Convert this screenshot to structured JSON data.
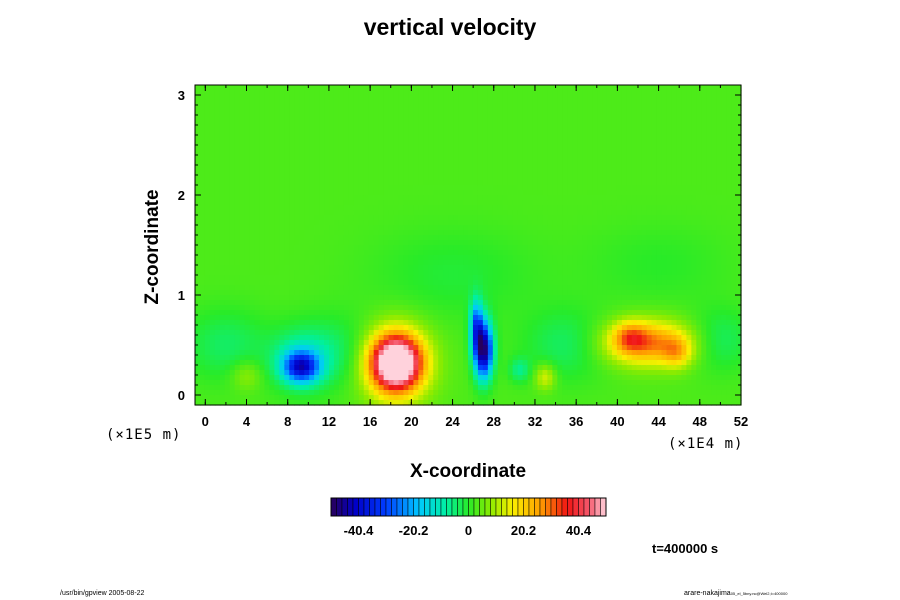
{
  "chart_data": {
    "type": "heatmap",
    "title": "vertical velocity",
    "xlabel": "X-coordinate",
    "ylabel": "Z-coordinate",
    "x_unit": "(×1E4 m)",
    "y_unit": "(×1E5 m)",
    "x_ticks": [
      "0",
      "4",
      "8",
      "12",
      "16",
      "20",
      "24",
      "28",
      "32",
      "36",
      "40",
      "44",
      "48",
      "52"
    ],
    "y_ticks": [
      "0",
      "1",
      "2",
      "3"
    ],
    "xlim": [
      -1,
      52
    ],
    "ylim": [
      -0.1,
      3.1
    ],
    "colorbar": {
      "tick_labels": [
        "-40.4",
        "-20.2",
        "0",
        "20.2",
        "40.4"
      ],
      "tick_values": [
        -40.4,
        -20.2,
        0,
        20.2,
        40.4
      ],
      "range": [
        -50.5,
        50.5
      ]
    },
    "background_value": 3,
    "features": [
      {
        "x": 18.5,
        "z": 0.32,
        "value": 52,
        "sx": 2.3,
        "sz": 0.26
      },
      {
        "x": 18.5,
        "z": 0.32,
        "value": 20,
        "sx": 3.3,
        "sz": 0.38
      },
      {
        "x": 43,
        "z": 0.52,
        "value": 26,
        "sx": 4.2,
        "sz": 0.22
      },
      {
        "x": 41.2,
        "z": 0.58,
        "value": 14,
        "sx": 1.6,
        "sz": 0.15
      },
      {
        "x": 45.8,
        "z": 0.42,
        "value": 12,
        "sx": 1.4,
        "sz": 0.15
      },
      {
        "x": 27,
        "z": 0.45,
        "value": -52,
        "sx": 0.9,
        "sz": 0.28
      },
      {
        "x": 26.3,
        "z": 0.7,
        "value": -26,
        "sx": 0.6,
        "sz": 0.25
      },
      {
        "x": 9.3,
        "z": 0.28,
        "value": -34,
        "sx": 1.7,
        "sz": 0.15
      },
      {
        "x": 9.3,
        "z": 0.35,
        "value": -12,
        "sx": 3.0,
        "sz": 0.3
      },
      {
        "x": 33,
        "z": 0.18,
        "value": 12,
        "sx": 1.0,
        "sz": 0.13
      },
      {
        "x": 4,
        "z": 0.2,
        "value": 7,
        "sx": 1.5,
        "sz": 0.15
      },
      {
        "x": 30.5,
        "z": 0.25,
        "value": -9,
        "sx": 1.0,
        "sz": 0.12
      },
      {
        "x": 2,
        "z": 0.5,
        "value": -7,
        "sx": 4.0,
        "sz": 0.35
      },
      {
        "x": 13,
        "z": 0.45,
        "value": -6,
        "sx": 4.0,
        "sz": 0.35
      },
      {
        "x": 35,
        "z": 0.5,
        "value": -7,
        "sx": 4.0,
        "sz": 0.35
      },
      {
        "x": 50,
        "z": 0.55,
        "value": -7,
        "sx": 3.0,
        "sz": 0.3
      },
      {
        "x": 24,
        "z": 1.2,
        "value": -4,
        "sx": 8.0,
        "sz": 0.45
      },
      {
        "x": 44,
        "z": 1.3,
        "value": -3,
        "sx": 7.0,
        "sz": 0.4
      }
    ],
    "time_label": "t=400000 s"
  },
  "footer": {
    "left": "/usr/bin/gpview 2005-08-22",
    "right_main": "arare-nakajima",
    "right_small": "05_el_5bny.nc@Wel2,t=400000"
  }
}
